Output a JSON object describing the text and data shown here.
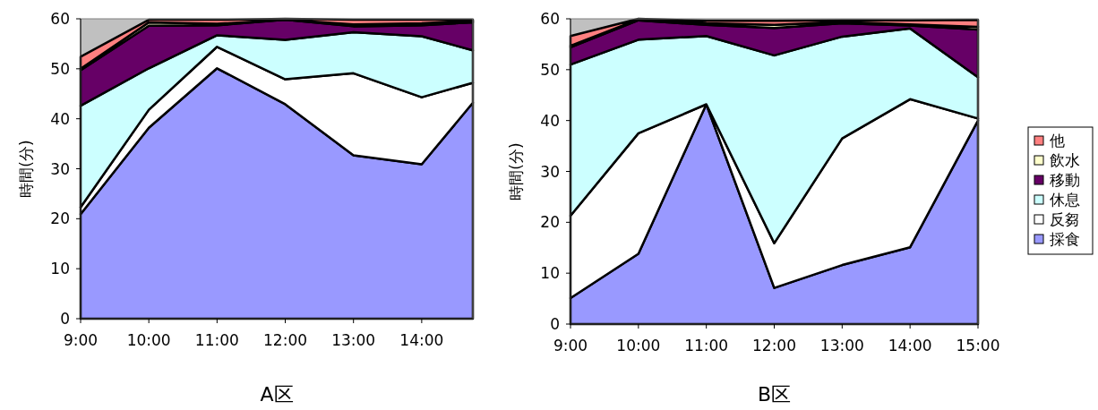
{
  "chart_data": [
    {
      "type": "area",
      "stacked": true,
      "xlabel": "A区",
      "ylabel": "時間(分)",
      "x": [
        9,
        10,
        11,
        12,
        13,
        14,
        14.75
      ],
      "xlim": [
        9,
        14.75
      ],
      "xticks": [
        {
          "value": 9,
          "label": "9:00"
        },
        {
          "value": 10,
          "label": "10:00"
        },
        {
          "value": 11,
          "label": "11:00"
        },
        {
          "value": 12,
          "label": "12:00"
        },
        {
          "value": 13,
          "label": "13:00"
        },
        {
          "value": 14,
          "label": "14:00"
        }
      ],
      "ylim": [
        0,
        60
      ],
      "yticks": [
        0,
        10,
        20,
        30,
        40,
        50,
        60
      ],
      "legend": false,
      "series": [
        {
          "color": "#9999ff",
          "values": [
            20.9,
            38.2,
            50.1,
            42.9,
            32.7,
            30.9,
            43.2
          ]
        },
        {
          "color": "#ffffff",
          "values": [
            1.4,
            3.6,
            4.3,
            5.0,
            16.4,
            13.4,
            4.0
          ]
        },
        {
          "color": "#ccffff",
          "values": [
            20.3,
            8.3,
            2.3,
            7.9,
            8.2,
            12.2,
            6.5
          ]
        },
        {
          "color": "#660066",
          "values": [
            7.1,
            8.5,
            2.0,
            4.0,
            1.2,
            2.2,
            5.6
          ]
        },
        {
          "color": "#ffffcc",
          "values": [
            0.3,
            0.7,
            0.3,
            0,
            0.4,
            0.4,
            0.3
          ]
        },
        {
          "color": "#ff8080",
          "values": [
            2.4,
            0.5,
            0.8,
            0.2,
            0.9,
            0.7,
            0.2
          ]
        }
      ]
    },
    {
      "type": "area",
      "stacked": true,
      "xlabel": "B区",
      "ylabel": "時間(分)",
      "x": [
        9,
        10,
        11,
        12,
        13,
        14,
        15
      ],
      "xlim": [
        9,
        15
      ],
      "xticks": [
        {
          "value": 9,
          "label": "9:00"
        },
        {
          "value": 10,
          "label": "10:00"
        },
        {
          "value": 11,
          "label": "11:00"
        },
        {
          "value": 12,
          "label": "12:00"
        },
        {
          "value": 13,
          "label": "13:00"
        },
        {
          "value": 14,
          "label": "14:00"
        },
        {
          "value": 15,
          "label": "15:00"
        }
      ],
      "ylim": [
        0,
        60
      ],
      "yticks": [
        0,
        10,
        20,
        30,
        40,
        50,
        60
      ],
      "legend": "right",
      "series": [
        {
          "name": "採食",
          "color": "#9999ff",
          "values": [
            5.1,
            13.8,
            43.2,
            7.1,
            11.6,
            15.1,
            40.0
          ]
        },
        {
          "name": "反芻",
          "color": "#ffffff",
          "values": [
            16.2,
            23.7,
            0,
            8.8,
            24.9,
            29.1,
            0.4
          ]
        },
        {
          "name": "休息",
          "color": "#ccffff",
          "values": [
            29.7,
            18.4,
            13.4,
            36.9,
            20.0,
            13.9,
            8.1
          ]
        },
        {
          "name": "移動",
          "color": "#660066",
          "values": [
            3.4,
            3.8,
            2.2,
            5.4,
            2.6,
            0.6,
            9.4
          ]
        },
        {
          "name": "飲水",
          "color": "#ffffcc",
          "values": [
            0.3,
            0.2,
            0.3,
            0.6,
            0.3,
            0.2,
            0.5
          ]
        },
        {
          "name": "他",
          "color": "#ff8080",
          "values": [
            1.9,
            0.1,
            0.5,
            0.8,
            0.3,
            0.8,
            1.4
          ]
        }
      ]
    }
  ]
}
